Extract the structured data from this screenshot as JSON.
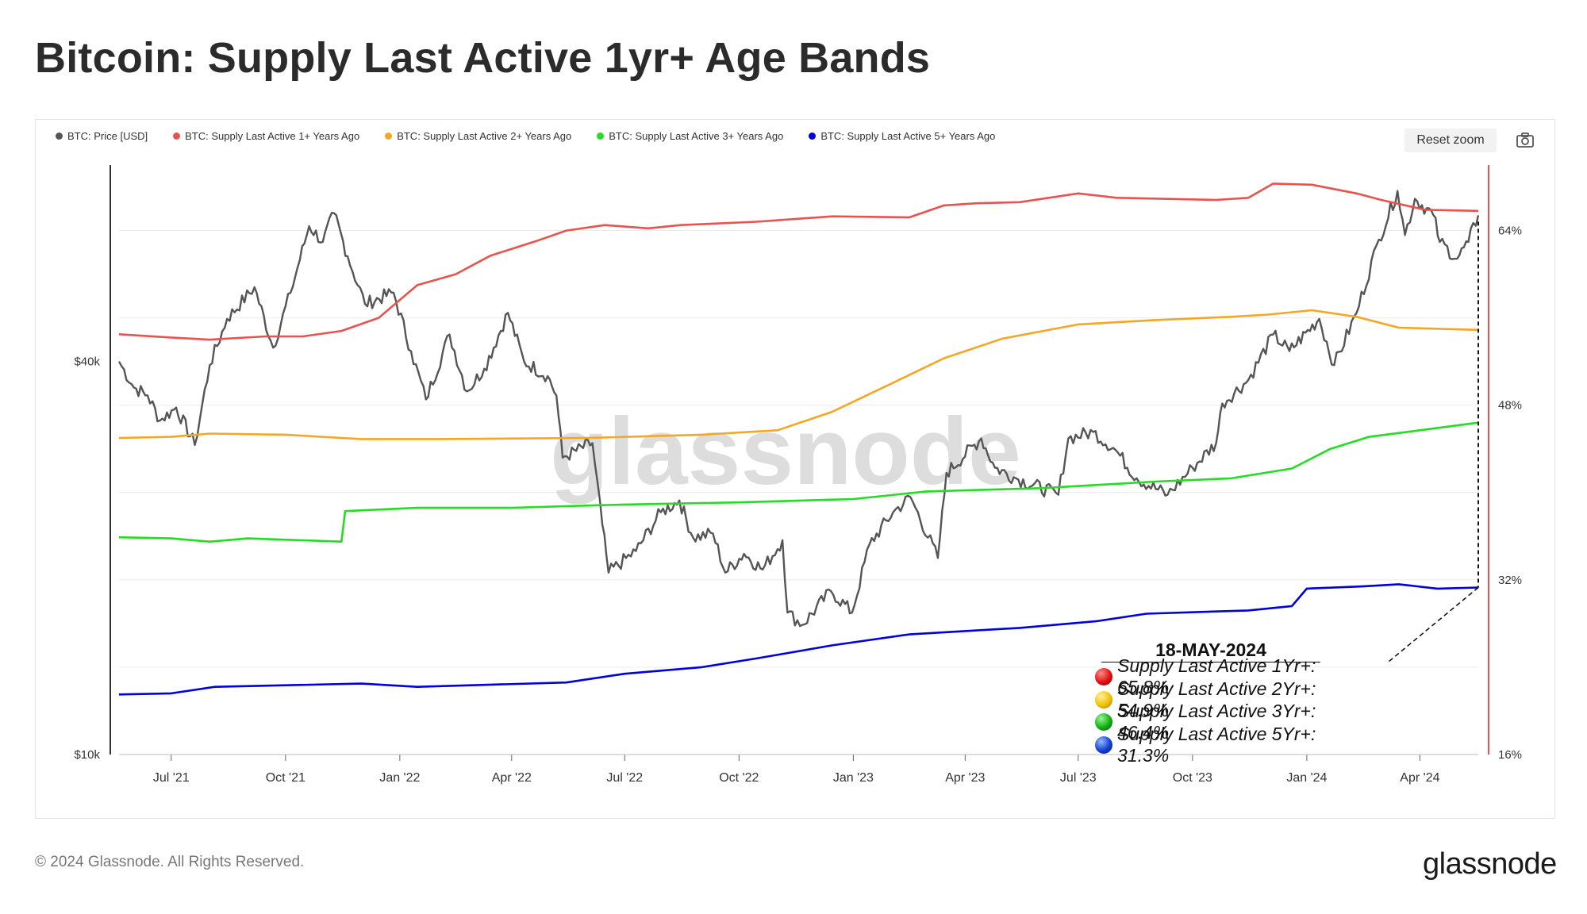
{
  "header": {
    "title": "Bitcoin: Supply Last Active 1yr+ Age Bands"
  },
  "toolbar": {
    "reset_zoom_label": "Reset zoom",
    "camera_icon": "camera-icon"
  },
  "legend": [
    {
      "label": "BTC: Price [USD]",
      "color": "#555555"
    },
    {
      "label": "BTC: Supply Last Active 1+ Years Ago",
      "color": "#e8534f"
    },
    {
      "label": "BTC: Supply Last Active 2+ Years Ago",
      "color": "#f5a623"
    },
    {
      "label": "BTC: Supply Last Active 3+ Years Ago",
      "color": "#22dd22"
    },
    {
      "label": "BTC: Supply Last Active 5+ Years Ago",
      "color": "#0000dd"
    }
  ],
  "watermark": "glassnode",
  "annotation": {
    "date": "18-MAY-2024",
    "rows": [
      {
        "label": "Supply Last Active 1Yr+: 65.8%",
        "color": "#e01010"
      },
      {
        "label": "Supply Last Active 2Yr+: 54.9%",
        "color": "#f0c000"
      },
      {
        "label": "Supply Last Active 3Yr+: 46.4%",
        "color": "#10b010"
      },
      {
        "label": "Supply Last Active 5Yr+: 31.3%",
        "color": "#1040d0"
      }
    ]
  },
  "footer": {
    "copyright": "© 2024 Glassnode. All Rights Reserved.",
    "brand": "glassnode"
  },
  "chart_data": {
    "type": "line",
    "x_range": [
      "2021-05-20",
      "2024-05-18"
    ],
    "x_ticks": [
      {
        "date": "2021-07-01",
        "label": "Jul '21"
      },
      {
        "date": "2021-10-01",
        "label": "Oct '21"
      },
      {
        "date": "2022-01-01",
        "label": "Jan '22"
      },
      {
        "date": "2022-04-01",
        "label": "Apr '22"
      },
      {
        "date": "2022-07-01",
        "label": "Jul '22"
      },
      {
        "date": "2022-10-01",
        "label": "Oct '22"
      },
      {
        "date": "2023-01-01",
        "label": "Jan '23"
      },
      {
        "date": "2023-04-01",
        "label": "Apr '23"
      },
      {
        "date": "2023-07-01",
        "label": "Jul '23"
      },
      {
        "date": "2023-10-01",
        "label": "Oct '23"
      },
      {
        "date": "2024-01-01",
        "label": "Jan '24"
      },
      {
        "date": "2024-04-01",
        "label": "Apr '24"
      }
    ],
    "y_left": {
      "scale": "log",
      "range": [
        10000,
        80000
      ],
      "ticks": [
        {
          "value": 10000,
          "label": "$10k"
        },
        {
          "value": 40000,
          "label": "$40k"
        }
      ]
    },
    "y_right": {
      "scale": "linear",
      "range": [
        16,
        70
      ],
      "ticks": [
        {
          "value": 16,
          "label": "16%"
        },
        {
          "value": 32,
          "label": "32%"
        },
        {
          "value": 48,
          "label": "48%"
        },
        {
          "value": 64,
          "label": "64%"
        }
      ]
    },
    "grid": true,
    "legend_position": "top-left",
    "series": [
      {
        "name": "BTC: Price [USD]",
        "axis": "left",
        "color": "#555555",
        "points": [
          [
            "2021-05-20",
            40000
          ],
          [
            "2021-06-01",
            36500
          ],
          [
            "2021-06-12",
            35500
          ],
          [
            "2021-06-22",
            32500
          ],
          [
            "2021-07-05",
            34000
          ],
          [
            "2021-07-20",
            29800
          ],
          [
            "2021-08-01",
            39500
          ],
          [
            "2021-08-15",
            46500
          ],
          [
            "2021-09-06",
            52000
          ],
          [
            "2021-09-21",
            42000
          ],
          [
            "2021-10-05",
            51000
          ],
          [
            "2021-10-20",
            64500
          ],
          [
            "2021-10-31",
            61000
          ],
          [
            "2021-11-09",
            67500
          ],
          [
            "2021-11-20",
            58000
          ],
          [
            "2021-12-04",
            49000
          ],
          [
            "2021-12-27",
            51000
          ],
          [
            "2022-01-10",
            41500
          ],
          [
            "2022-01-22",
            35000
          ],
          [
            "2022-02-10",
            44000
          ],
          [
            "2022-02-24",
            36000
          ],
          [
            "2022-03-10",
            39000
          ],
          [
            "2022-03-29",
            47500
          ],
          [
            "2022-04-11",
            40000
          ],
          [
            "2022-04-30",
            38000
          ],
          [
            "2022-05-07",
            35500
          ],
          [
            "2022-05-12",
            28500
          ],
          [
            "2022-06-05",
            30000
          ],
          [
            "2022-06-13",
            22500
          ],
          [
            "2022-06-18",
            19000
          ],
          [
            "2022-07-10",
            20500
          ],
          [
            "2022-07-30",
            23500
          ],
          [
            "2022-08-14",
            24500
          ],
          [
            "2022-08-25",
            21500
          ],
          [
            "2022-09-10",
            21800
          ],
          [
            "2022-09-20",
            19000
          ],
          [
            "2022-10-05",
            20300
          ],
          [
            "2022-10-20",
            19200
          ],
          [
            "2022-11-05",
            21300
          ],
          [
            "2022-11-09",
            16500
          ],
          [
            "2022-11-21",
            15800
          ],
          [
            "2022-12-14",
            17800
          ],
          [
            "2022-12-31",
            16500
          ],
          [
            "2023-01-14",
            21000
          ],
          [
            "2023-02-02",
            23500
          ],
          [
            "2023-02-16",
            24800
          ],
          [
            "2023-03-10",
            20000
          ],
          [
            "2023-03-17",
            27000
          ],
          [
            "2023-04-14",
            30500
          ],
          [
            "2023-04-25",
            27500
          ],
          [
            "2023-05-12",
            26500
          ],
          [
            "2023-06-15",
            25000
          ],
          [
            "2023-06-23",
            30500
          ],
          [
            "2023-07-13",
            31200
          ],
          [
            "2023-07-31",
            29300
          ],
          [
            "2023-08-17",
            26500
          ],
          [
            "2023-09-11",
            25000
          ],
          [
            "2023-10-01",
            27500
          ],
          [
            "2023-10-20",
            30000
          ],
          [
            "2023-10-25",
            34500
          ],
          [
            "2023-11-15",
            37500
          ],
          [
            "2023-12-05",
            44000
          ],
          [
            "2023-12-18",
            41500
          ],
          [
            "2024-01-11",
            46500
          ],
          [
            "2024-01-23",
            39500
          ],
          [
            "2024-02-10",
            47500
          ],
          [
            "2024-02-28",
            61500
          ],
          [
            "2024-03-14",
            73000
          ],
          [
            "2024-03-20",
            62500
          ],
          [
            "2024-03-28",
            71000
          ],
          [
            "2024-04-12",
            67000
          ],
          [
            "2024-04-17",
            61000
          ],
          [
            "2024-05-01",
            57500
          ],
          [
            "2024-05-10",
            61000
          ],
          [
            "2024-05-18",
            67000
          ]
        ]
      },
      {
        "name": "BTC: Supply Last Active 1+ Years Ago",
        "axis": "right",
        "color": "#e8534f",
        "points": [
          [
            "2021-05-20",
            54.5
          ],
          [
            "2021-07-01",
            54.2
          ],
          [
            "2021-08-01",
            54.0
          ],
          [
            "2021-09-15",
            54.3
          ],
          [
            "2021-10-15",
            54.3
          ],
          [
            "2021-11-15",
            54.8
          ],
          [
            "2021-12-15",
            56.0
          ],
          [
            "2022-01-15",
            59.0
          ],
          [
            "2022-02-15",
            60.0
          ],
          [
            "2022-03-15",
            61.7
          ],
          [
            "2022-04-20",
            63.0
          ],
          [
            "2022-05-15",
            64.0
          ],
          [
            "2022-06-15",
            64.5
          ],
          [
            "2022-07-20",
            64.2
          ],
          [
            "2022-08-15",
            64.5
          ],
          [
            "2022-10-15",
            64.8
          ],
          [
            "2022-12-15",
            65.3
          ],
          [
            "2023-02-15",
            65.2
          ],
          [
            "2023-03-15",
            66.3
          ],
          [
            "2023-04-10",
            66.5
          ],
          [
            "2023-05-15",
            66.6
          ],
          [
            "2023-07-01",
            67.4
          ],
          [
            "2023-08-01",
            67.0
          ],
          [
            "2023-10-20",
            66.8
          ],
          [
            "2023-11-15",
            67.0
          ],
          [
            "2023-12-05",
            68.3
          ],
          [
            "2024-01-05",
            68.2
          ],
          [
            "2024-02-10",
            67.4
          ],
          [
            "2024-03-01",
            66.8
          ],
          [
            "2024-04-05",
            65.9
          ],
          [
            "2024-05-18",
            65.8
          ]
        ]
      },
      {
        "name": "BTC: Supply Last Active 2+ Years Ago",
        "axis": "right",
        "color": "#f5a623",
        "points": [
          [
            "2021-05-20",
            45.0
          ],
          [
            "2021-07-01",
            45.1
          ],
          [
            "2021-08-01",
            45.4
          ],
          [
            "2021-10-01",
            45.3
          ],
          [
            "2021-12-01",
            44.9
          ],
          [
            "2022-02-01",
            44.9
          ],
          [
            "2022-06-01",
            45.0
          ],
          [
            "2022-09-01",
            45.3
          ],
          [
            "2022-11-01",
            45.7
          ],
          [
            "2022-12-15",
            47.4
          ],
          [
            "2023-02-01",
            50.0
          ],
          [
            "2023-03-15",
            52.3
          ],
          [
            "2023-05-01",
            54.1
          ],
          [
            "2023-07-01",
            55.4
          ],
          [
            "2023-09-01",
            55.8
          ],
          [
            "2023-11-01",
            56.1
          ],
          [
            "2023-12-01",
            56.3
          ],
          [
            "2024-01-05",
            56.7
          ],
          [
            "2024-02-10",
            56.1
          ],
          [
            "2024-03-15",
            55.1
          ],
          [
            "2024-05-18",
            54.9
          ]
        ]
      },
      {
        "name": "BTC: Supply Last Active 3+ Years Ago",
        "axis": "right",
        "color": "#22dd22",
        "points": [
          [
            "2021-05-20",
            35.9
          ],
          [
            "2021-07-01",
            35.8
          ],
          [
            "2021-08-01",
            35.5
          ],
          [
            "2021-09-01",
            35.8
          ],
          [
            "2021-11-15",
            35.5
          ],
          [
            "2021-11-18",
            38.3
          ],
          [
            "2022-01-15",
            38.6
          ],
          [
            "2022-04-01",
            38.6
          ],
          [
            "2022-07-01",
            38.9
          ],
          [
            "2022-10-01",
            39.1
          ],
          [
            "2023-01-01",
            39.4
          ],
          [
            "2023-03-01",
            40.1
          ],
          [
            "2023-06-01",
            40.4
          ],
          [
            "2023-09-01",
            41.0
          ],
          [
            "2023-11-01",
            41.3
          ],
          [
            "2023-12-20",
            42.2
          ],
          [
            "2024-01-20",
            44.0
          ],
          [
            "2024-02-20",
            45.1
          ],
          [
            "2024-04-01",
            45.7
          ],
          [
            "2024-05-18",
            46.4
          ]
        ]
      },
      {
        "name": "BTC: Supply Last Active 5+ Years Ago",
        "axis": "right",
        "color": "#0000dd",
        "points": [
          [
            "2021-05-20",
            21.5
          ],
          [
            "2021-07-01",
            21.6
          ],
          [
            "2021-08-05",
            22.2
          ],
          [
            "2021-12-01",
            22.5
          ],
          [
            "2022-01-15",
            22.2
          ],
          [
            "2022-05-15",
            22.6
          ],
          [
            "2022-07-01",
            23.4
          ],
          [
            "2022-09-01",
            24.0
          ],
          [
            "2022-10-15",
            24.8
          ],
          [
            "2022-12-15",
            26.0
          ],
          [
            "2023-02-15",
            27.0
          ],
          [
            "2023-05-15",
            27.6
          ],
          [
            "2023-07-15",
            28.2
          ],
          [
            "2023-08-25",
            28.9
          ],
          [
            "2023-11-15",
            29.2
          ],
          [
            "2023-12-20",
            29.6
          ],
          [
            "2024-01-01",
            31.2
          ],
          [
            "2024-02-15",
            31.4
          ],
          [
            "2024-03-15",
            31.6
          ],
          [
            "2024-04-15",
            31.2
          ],
          [
            "2024-05-18",
            31.3
          ]
        ]
      }
    ]
  }
}
